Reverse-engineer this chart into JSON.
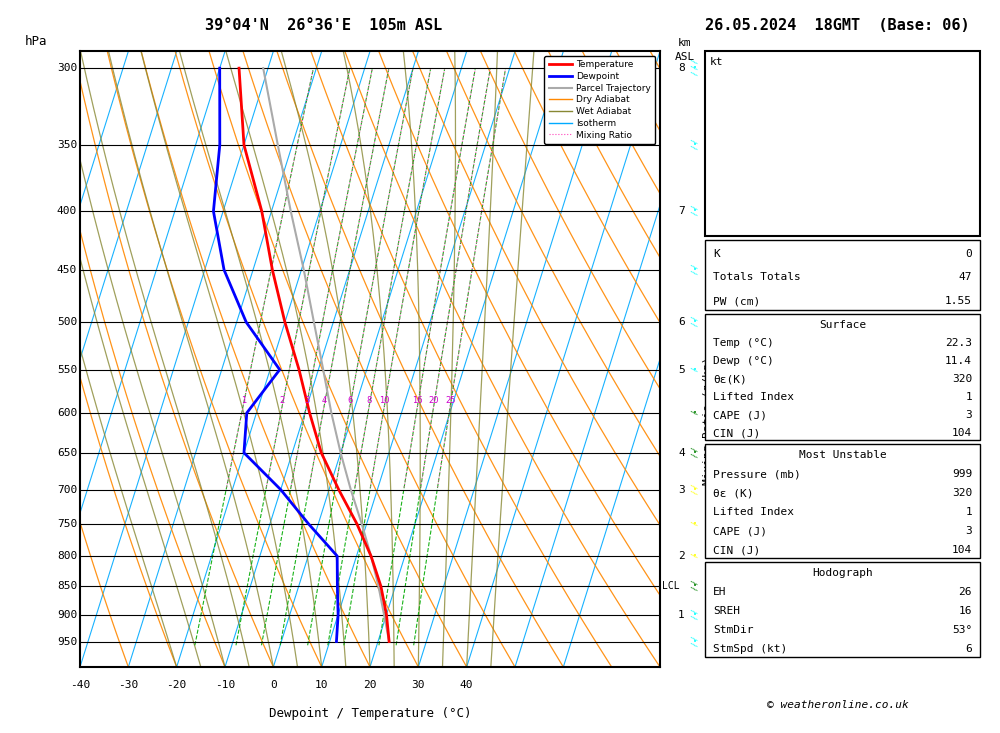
{
  "title_left": "39°04'N  26°36'E  105m ASL",
  "title_right": "26.05.2024  18GMT  (Base: 06)",
  "xlabel": "Dewpoint / Temperature (°C)",
  "pressure_levels": [
    300,
    350,
    400,
    450,
    500,
    550,
    600,
    650,
    700,
    750,
    800,
    850,
    900,
    950
  ],
  "temp_profile_T": [
    22.3,
    20.0,
    17.0,
    13.0,
    8.0,
    2.0,
    -4.0,
    -9.0,
    -14.0,
    -20.0,
    -26.0,
    -32.0,
    -40.0,
    -46.0
  ],
  "temp_profile_P": [
    950,
    900,
    850,
    800,
    750,
    700,
    650,
    600,
    550,
    500,
    450,
    400,
    350,
    300
  ],
  "dewp_profile_T": [
    11.4,
    10.0,
    8.0,
    6.0,
    -2.0,
    -10.0,
    -20.0,
    -22.0,
    -18.0,
    -28.0,
    -36.0,
    -42.0,
    -45.0,
    -50.0
  ],
  "dewp_profile_P": [
    950,
    900,
    850,
    800,
    750,
    700,
    650,
    600,
    550,
    500,
    450,
    400,
    350,
    300
  ],
  "parcel_T": [
    22.3,
    19.5,
    16.5,
    13.0,
    9.0,
    4.5,
    0.0,
    -4.5,
    -9.0,
    -14.0,
    -19.5,
    -26.0,
    -33.0,
    -41.0
  ],
  "parcel_P": [
    950,
    900,
    850,
    800,
    750,
    700,
    650,
    600,
    550,
    500,
    450,
    400,
    350,
    300
  ],
  "lcl_pressure": 850,
  "mixing_ratio_values": [
    1,
    2,
    3,
    4,
    6,
    8,
    10,
    16,
    20,
    25
  ],
  "km_labels": {
    "300": "8",
    "400": "7",
    "500": "6",
    "550": "5",
    "650": "4",
    "700": "3",
    "800": "2",
    "900": "1"
  },
  "stats": {
    "K": "0",
    "Totals_Totals": "47",
    "PW_cm": "1.55",
    "Surface_Temp": "22.3",
    "Surface_Dewp": "11.4",
    "Surface_theta_e": "320",
    "Surface_LI": "1",
    "Surface_CAPE": "3",
    "Surface_CIN": "104",
    "MU_Pressure": "999",
    "MU_theta_e": "320",
    "MU_LI": "1",
    "MU_CAPE": "3",
    "MU_CIN": "104",
    "Hodo_EH": "26",
    "Hodo_SREH": "16",
    "Hodo_StmDir": "53°",
    "Hodo_StmSpd": "6"
  },
  "isotherm_color": "#00aaff",
  "dry_adiabat_color": "#ff8800",
  "wet_adiabat_color": "#888833",
  "mixing_ratio_green": "#00aa00",
  "mixing_ratio_pink": "#ff44bb",
  "temp_color": "#ff0000",
  "dewp_color": "#0000ff",
  "parcel_color": "#aaaaaa",
  "copyright": "© weatheronline.co.uk"
}
